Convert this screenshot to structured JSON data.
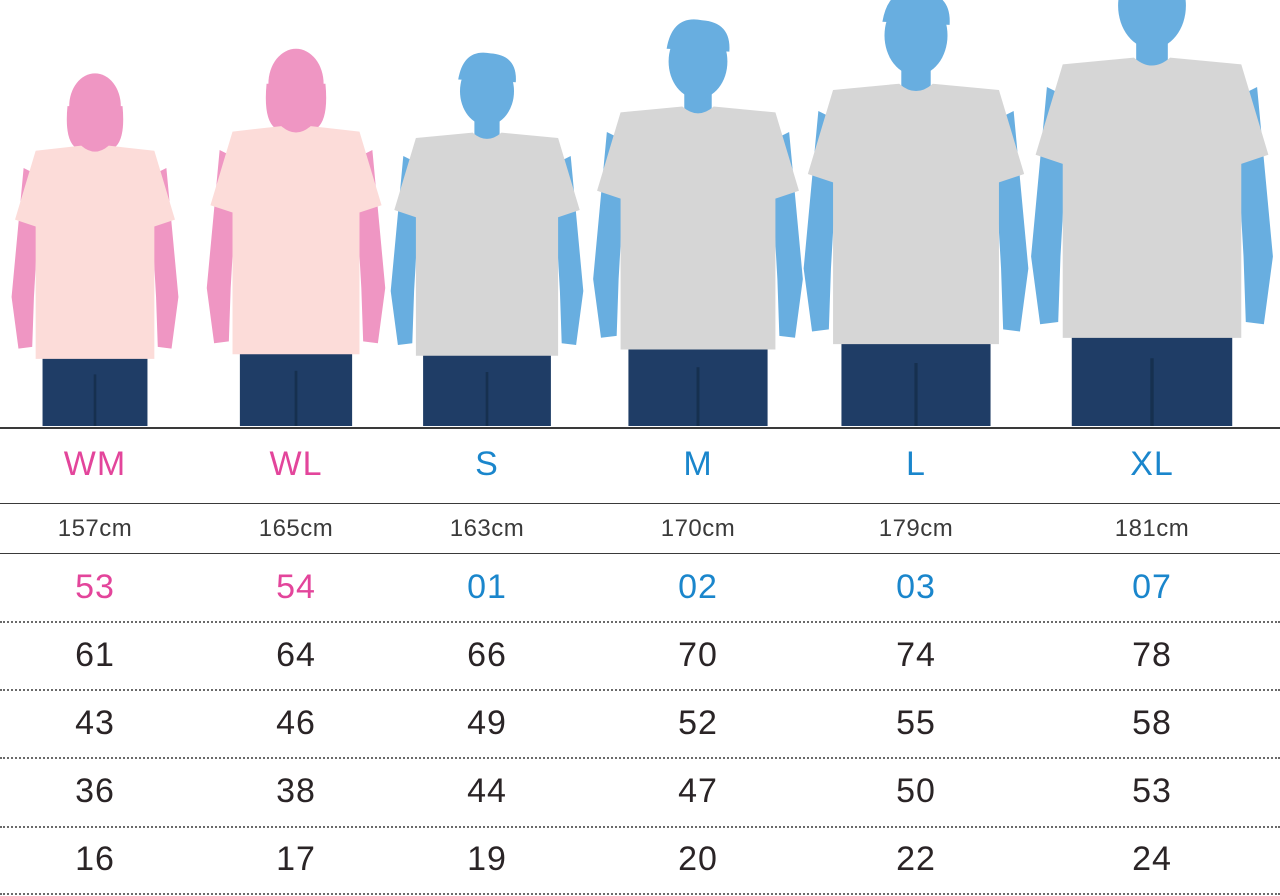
{
  "colors": {
    "women_silhouette": "#ef96c3",
    "women_accent": "#e3459b",
    "men_silhouette": "#68aee0",
    "men_accent": "#1a86cc",
    "women_shirt": "#fcdcd9",
    "men_shirt": "#d6d6d6",
    "jeans": "#1f3d66",
    "text_dark": "#2a2426",
    "rule": "#3a3a3a"
  },
  "sizes": [
    {
      "id": "wm",
      "label": "WM",
      "gender": "women",
      "height": "157cm",
      "code": "53",
      "values": [
        "61",
        "43",
        "36",
        "16"
      ]
    },
    {
      "id": "wl",
      "label": "WL",
      "gender": "women",
      "height": "165cm",
      "code": "54",
      "values": [
        "64",
        "46",
        "38",
        "17"
      ]
    },
    {
      "id": "s",
      "label": "S",
      "gender": "men",
      "height": "163cm",
      "code": "01",
      "values": [
        "66",
        "49",
        "44",
        "19"
      ]
    },
    {
      "id": "m",
      "label": "M",
      "gender": "men",
      "height": "170cm",
      "code": "02",
      "values": [
        "70",
        "52",
        "47",
        "20"
      ]
    },
    {
      "id": "l",
      "label": "L",
      "gender": "men",
      "height": "179cm",
      "code": "03",
      "values": [
        "74",
        "55",
        "50",
        "22"
      ]
    },
    {
      "id": "xl",
      "label": "XL",
      "gender": "men",
      "height": "181cm",
      "code": "07",
      "values": [
        "78",
        "58",
        "53",
        "24"
      ]
    }
  ]
}
